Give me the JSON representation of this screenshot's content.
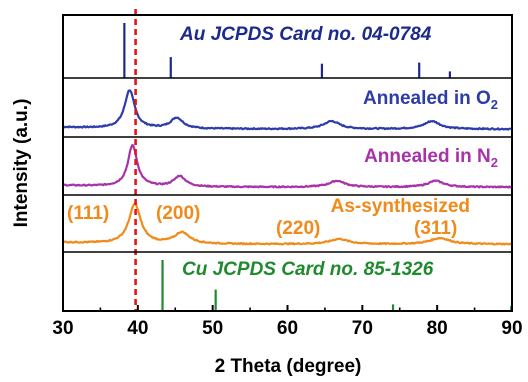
{
  "chart_data": {
    "type": "line",
    "xlabel": "2 Theta (degree)",
    "ylabel": "Intensity (a.u.)",
    "xlim": [
      30,
      90
    ],
    "x_ticks": [
      "30",
      "40",
      "50",
      "60",
      "70",
      "80",
      "90"
    ],
    "reference_line": {
      "x": 39.7,
      "color": "#e01818",
      "style": "dashed"
    },
    "panels": [
      {
        "id": "au-ref",
        "type": "stick",
        "label": "Au JCPDS Card no. 04-0784",
        "italic": true,
        "color": "#1c2a8c",
        "sticks": [
          {
            "x": 38.2,
            "h": 1.0
          },
          {
            "x": 44.4,
            "h": 0.38
          },
          {
            "x": 64.6,
            "h": 0.26
          },
          {
            "x": 77.6,
            "h": 0.28
          },
          {
            "x": 81.7,
            "h": 0.12
          }
        ]
      },
      {
        "id": "o2",
        "type": "pattern",
        "label": "Annealed in O",
        "label_sub": "2",
        "color": "#2d3ca8",
        "baseline": 0.08,
        "peaks": [
          {
            "x": 38.9,
            "h": 0.78,
            "w": 0.8
          },
          {
            "x": 45.2,
            "h": 0.22,
            "w": 1.0
          },
          {
            "x": 65.9,
            "h": 0.16,
            "w": 1.3
          },
          {
            "x": 79.3,
            "h": 0.16,
            "w": 1.3
          }
        ]
      },
      {
        "id": "n2",
        "type": "pattern",
        "label": "Annealed in N",
        "label_sub": "2",
        "color": "#a832a8",
        "baseline": 0.08,
        "peaks": [
          {
            "x": 39.3,
            "h": 0.86,
            "w": 0.75
          },
          {
            "x": 45.6,
            "h": 0.22,
            "w": 0.95
          },
          {
            "x": 66.6,
            "h": 0.13,
            "w": 1.3
          },
          {
            "x": 79.8,
            "h": 0.13,
            "w": 1.3
          }
        ]
      },
      {
        "id": "as-synth",
        "type": "pattern",
        "label": "As-synthesized",
        "color": "#f08a1a",
        "baseline": 0.08,
        "peaks": [
          {
            "x": 39.6,
            "h": 0.84,
            "w": 0.95
          },
          {
            "x": 45.9,
            "h": 0.24,
            "w": 1.2
          },
          {
            "x": 66.9,
            "h": 0.11,
            "w": 1.5
          },
          {
            "x": 80.4,
            "h": 0.13,
            "w": 1.6
          }
        ],
        "peak_labels": [
          {
            "text": "(111)"
          },
          {
            "text": "(200)"
          },
          {
            "text": "(220)"
          },
          {
            "text": "(311)"
          }
        ]
      },
      {
        "id": "cu-ref",
        "type": "stick",
        "label": "Cu JCPDS Card no. 85-1326",
        "italic": true,
        "color": "#1f8a2e",
        "sticks": [
          {
            "x": 43.3,
            "h": 1.0
          },
          {
            "x": 50.4,
            "h": 0.42
          },
          {
            "x": 74.1,
            "h": 0.13
          },
          {
            "x": 89.9,
            "h": 0.1
          }
        ]
      }
    ]
  }
}
